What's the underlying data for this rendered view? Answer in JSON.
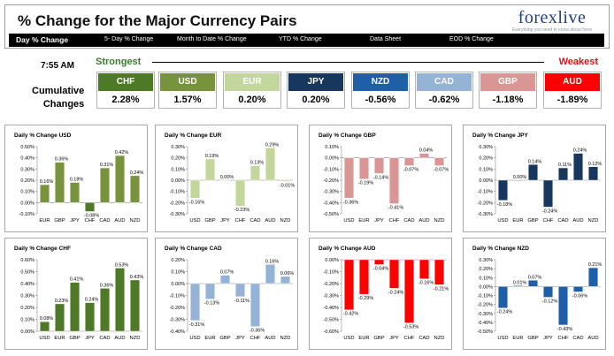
{
  "header": {
    "title": "% Change for the Major Currency Pairs",
    "logo_text": "forexlive",
    "logo_subtext": "Everything you need to know about forex markets",
    "tabs": [
      {
        "label": "Day % Change"
      },
      {
        "label": "5- Day % Change"
      },
      {
        "label": "Month to Date % Change"
      },
      {
        "label": "YTD % Change"
      },
      {
        "label": "Data Sheet"
      },
      {
        "label": "EOD % Change"
      }
    ]
  },
  "summary": {
    "time": "7:55 AM",
    "strongest_label": "Strongest",
    "weakest_label": "Weakest",
    "cumulative_label_line1": "Cumulative",
    "cumulative_label_line2": "Changes",
    "currencies": [
      {
        "name": "CHF",
        "value": "2.28%",
        "color": "#4e7a27"
      },
      {
        "name": "USD",
        "value": "1.57%",
        "color": "#77933c"
      },
      {
        "name": "EUR",
        "value": "0.20%",
        "color": "#c3d69b"
      },
      {
        "name": "JPY",
        "value": "0.20%",
        "color": "#17375e"
      },
      {
        "name": "NZD",
        "value": "-0.56%",
        "color": "#1f5fa8"
      },
      {
        "name": "CAD",
        "value": "-0.62%",
        "color": "#95b3d7"
      },
      {
        "name": "GBP",
        "value": "-1.18%",
        "color": "#d99694"
      },
      {
        "name": "AUD",
        "value": "-1.89%",
        "color": "#ff0000"
      }
    ]
  },
  "chart_data": [
    {
      "type": "bar",
      "title": "Daily % Change USD",
      "categories": [
        "EUR",
        "GBP",
        "JPY",
        "CHF",
        "CAD",
        "AUD",
        "NZD"
      ],
      "values": [
        0.16,
        0.36,
        0.18,
        -0.08,
        0.31,
        0.42,
        0.24
      ],
      "labels": [
        "0.16%",
        "0.36%",
        "0.18%",
        "-0.08%",
        "0.31%",
        "0.42%",
        "0.24%"
      ],
      "ylim": [
        -0.1,
        0.5
      ],
      "yticks": [
        -0.1,
        0.0,
        0.1,
        0.2,
        0.3,
        0.4,
        0.5
      ],
      "ytick_labels": [
        "-0.10%",
        "0.00%",
        "0.10%",
        "0.20%",
        "0.30%",
        "0.40%",
        "0.50%"
      ],
      "colors": [
        "#77933c",
        "#77933c",
        "#77933c",
        "#4e7a27",
        "#77933c",
        "#77933c",
        "#77933c"
      ]
    },
    {
      "type": "bar",
      "title": "Daily % Change EUR",
      "categories": [
        "USD",
        "GBP",
        "JPY",
        "CHF",
        "CAD",
        "AUD",
        "NZD"
      ],
      "values": [
        -0.16,
        0.19,
        0.0,
        -0.23,
        0.13,
        0.29,
        -0.01
      ],
      "labels": [
        "-0.16%",
        "0.19%",
        "0.00%",
        "-0.23%",
        "0.13%",
        "0.29%",
        "-0.01%"
      ],
      "ylim": [
        -0.3,
        0.3
      ],
      "yticks": [
        -0.3,
        -0.2,
        -0.1,
        0.0,
        0.1,
        0.2,
        0.3
      ],
      "ytick_labels": [
        "-0.30%",
        "-0.20%",
        "-0.10%",
        "0.00%",
        "0.10%",
        "0.20%",
        "0.30%"
      ],
      "colors": [
        "#c3d69b",
        "#c3d69b",
        "#c3d69b",
        "#c3d69b",
        "#c3d69b",
        "#c3d69b",
        "#c3d69b"
      ]
    },
    {
      "type": "bar",
      "title": "Daily % Change GBP",
      "categories": [
        "USD",
        "EUR",
        "JPY",
        "CHF",
        "CAD",
        "AUD",
        "NZD"
      ],
      "values": [
        -0.36,
        -0.19,
        -0.14,
        -0.41,
        -0.07,
        0.04,
        -0.07
      ],
      "labels": [
        "-0.36%",
        "-0.19%",
        "-0.14%",
        "-0.41%",
        "-0.07%",
        "0.04%",
        "-0.07%"
      ],
      "ylim": [
        -0.5,
        0.1
      ],
      "yticks": [
        -0.5,
        -0.4,
        -0.3,
        -0.2,
        -0.1,
        0.0,
        0.1
      ],
      "ytick_labels": [
        "-0.50%",
        "-0.40%",
        "-0.30%",
        "-0.20%",
        "-0.10%",
        "0.00%",
        "0.10%"
      ],
      "colors": [
        "#d99694",
        "#d99694",
        "#d99694",
        "#d99694",
        "#d99694",
        "#d99694",
        "#d99694"
      ]
    },
    {
      "type": "bar",
      "title": "Daily % Change JPY",
      "categories": [
        "USD",
        "EUR",
        "GBP",
        "CHF",
        "CAD",
        "AUD",
        "NZD"
      ],
      "values": [
        -0.18,
        0.0,
        0.14,
        -0.24,
        0.11,
        0.24,
        0.12
      ],
      "labels": [
        "-0.18%",
        "0.00%",
        "0.14%",
        "-0.24%",
        "0.11%",
        "0.24%",
        "0.12%"
      ],
      "ylim": [
        -0.3,
        0.3
      ],
      "yticks": [
        -0.3,
        -0.2,
        -0.1,
        0.0,
        0.1,
        0.2,
        0.3
      ],
      "ytick_labels": [
        "-0.30%",
        "-0.20%",
        "-0.10%",
        "0.00%",
        "0.10%",
        "0.20%",
        "0.30%"
      ],
      "colors": [
        "#17375e",
        "#17375e",
        "#17375e",
        "#17375e",
        "#17375e",
        "#17375e",
        "#17375e"
      ]
    },
    {
      "type": "bar",
      "title": "Daily % Change CHF",
      "categories": [
        "USD",
        "EUR",
        "GBP",
        "JPY",
        "CAD",
        "AUD",
        "NZD"
      ],
      "values": [
        0.08,
        0.23,
        0.41,
        0.24,
        0.36,
        0.53,
        0.43
      ],
      "labels": [
        "0.08%",
        "0.23%",
        "0.41%",
        "0.24%",
        "0.36%",
        "0.53%",
        "0.43%"
      ],
      "ylim": [
        0.0,
        0.6
      ],
      "yticks": [
        0.0,
        0.1,
        0.2,
        0.3,
        0.4,
        0.5,
        0.6
      ],
      "ytick_labels": [
        "0.00%",
        "0.10%",
        "0.20%",
        "0.30%",
        "0.40%",
        "0.50%",
        "0.60%"
      ],
      "colors": [
        "#4e7a27",
        "#4e7a27",
        "#4e7a27",
        "#4e7a27",
        "#4e7a27",
        "#4e7a27",
        "#4e7a27"
      ]
    },
    {
      "type": "bar",
      "title": "Daily % Change CAD",
      "categories": [
        "USD",
        "EUR",
        "GBP",
        "JPY",
        "CHF",
        "AUD",
        "NZD"
      ],
      "values": [
        -0.31,
        -0.13,
        0.07,
        -0.11,
        -0.36,
        0.16,
        0.06
      ],
      "labels": [
        "-0.31%",
        "-0.13%",
        "0.07%",
        "-0.11%",
        "-0.36%",
        "0.16%",
        "0.06%"
      ],
      "ylim": [
        -0.4,
        0.2
      ],
      "yticks": [
        -0.4,
        -0.3,
        -0.2,
        -0.1,
        0.0,
        0.1,
        0.2
      ],
      "ytick_labels": [
        "-0.40%",
        "-0.30%",
        "-0.20%",
        "-0.10%",
        "0.00%",
        "0.10%",
        "0.20%"
      ],
      "colors": [
        "#95b3d7",
        "#95b3d7",
        "#95b3d7",
        "#95b3d7",
        "#95b3d7",
        "#95b3d7",
        "#95b3d7"
      ]
    },
    {
      "type": "bar",
      "title": "Daily % Change AUD",
      "categories": [
        "USD",
        "EUR",
        "GBP",
        "JPY",
        "CHF",
        "CAD",
        "NZD"
      ],
      "values": [
        -0.42,
        -0.29,
        -0.04,
        -0.24,
        -0.53,
        -0.16,
        -0.21
      ],
      "labels": [
        "-0.42%",
        "-0.29%",
        "-0.04%",
        "-0.24%",
        "-0.53%",
        "-0.16%",
        "-0.21%"
      ],
      "ylim": [
        -0.6,
        0.0
      ],
      "yticks": [
        -0.6,
        -0.5,
        -0.4,
        -0.3,
        -0.2,
        -0.1,
        0.0
      ],
      "ytick_labels": [
        "-0.60%",
        "-0.50%",
        "-0.40%",
        "-0.30%",
        "-0.20%",
        "-0.10%",
        "0.00%"
      ],
      "colors": [
        "#ff0000",
        "#ff0000",
        "#ff0000",
        "#ff0000",
        "#ff0000",
        "#ff0000",
        "#ff0000"
      ]
    },
    {
      "type": "bar",
      "title": "Daily % Change NZD",
      "categories": [
        "USD",
        "EUR",
        "GBP",
        "JPY",
        "CHF",
        "CAD",
        "AUD"
      ],
      "values": [
        -0.24,
        0.01,
        0.07,
        -0.12,
        -0.43,
        -0.06,
        0.21
      ],
      "labels": [
        "-0.24%",
        "0.01%",
        "0.07%",
        "-0.12%",
        "-0.43%",
        "-0.06%",
        "0.21%"
      ],
      "ylim": [
        -0.5,
        0.3
      ],
      "yticks": [
        -0.5,
        -0.4,
        -0.3,
        -0.2,
        -0.1,
        0.0,
        0.1,
        0.2,
        0.3
      ],
      "ytick_labels": [
        "-0.50%",
        "-0.40%",
        "-0.30%",
        "-0.20%",
        "-0.10%",
        "0.00%",
        "0.10%",
        "0.20%",
        "0.30%"
      ],
      "colors": [
        "#1f5fa8",
        "#1f5fa8",
        "#1f5fa8",
        "#1f5fa8",
        "#1f5fa8",
        "#1f5fa8",
        "#1f5fa8"
      ]
    }
  ]
}
